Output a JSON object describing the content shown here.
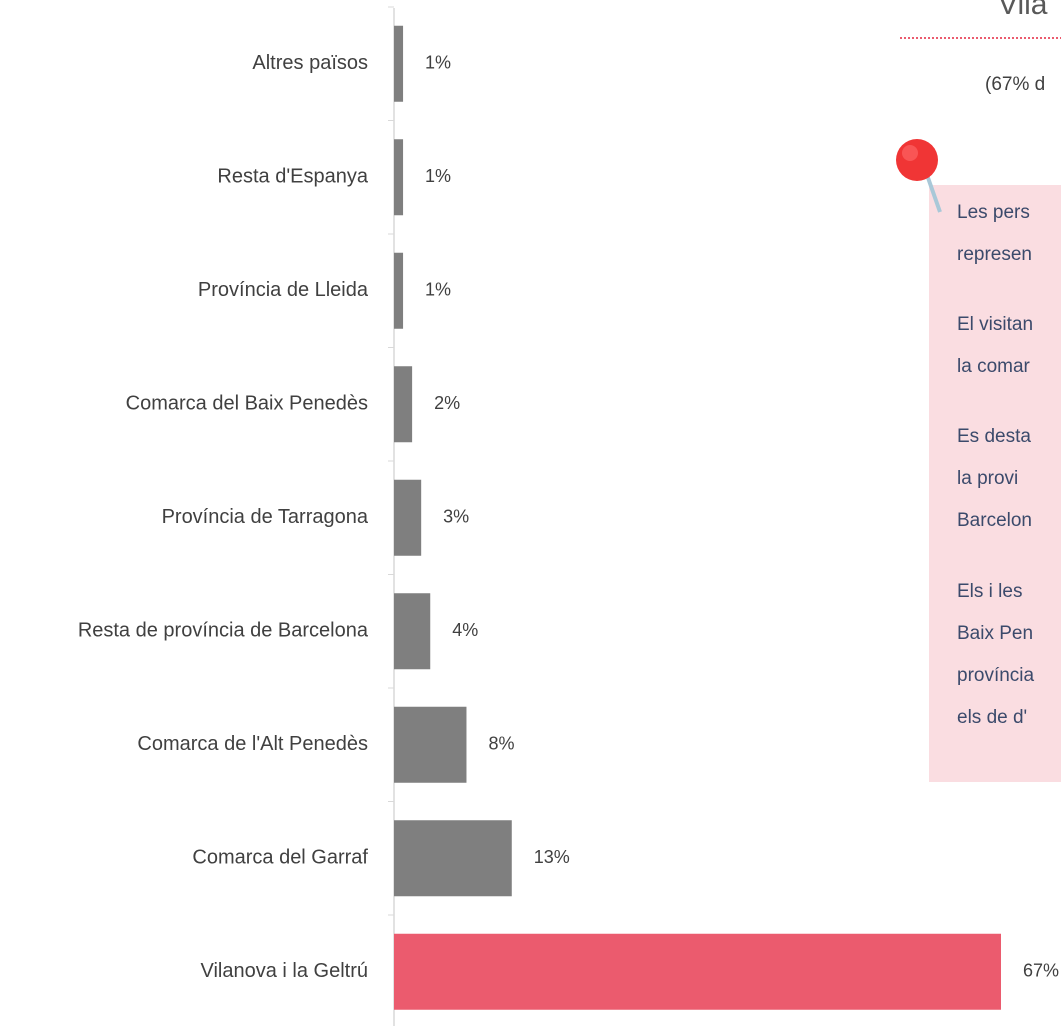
{
  "chart_data": {
    "type": "bar",
    "orientation": "horizontal",
    "title": "Vila",
    "subtitle": "(67% d",
    "categories": [
      "Altres països",
      "Resta d'Espanya",
      "Província de Lleida",
      "Comarca del Baix Penedès",
      "Província de Tarragona",
      "Resta de província de Barcelona",
      "Comarca de l'Alt Penedès",
      "Comarca del Garraf",
      "Vilanova i la Geltrú"
    ],
    "values": [
      1,
      1,
      1,
      2,
      3,
      4,
      8,
      13,
      67
    ],
    "value_labels": [
      "1%",
      "1%",
      "1%",
      "2%",
      "3%",
      "4%",
      "8%",
      "13%",
      "67%"
    ],
    "colors": [
      "#7f7f7f",
      "#7f7f7f",
      "#7f7f7f",
      "#7f7f7f",
      "#7f7f7f",
      "#7f7f7f",
      "#7f7f7f",
      "#7f7f7f",
      "#eb5b6e"
    ],
    "xlim": [
      0,
      67
    ],
    "note": [
      [
        "Les pers",
        "represen"
      ],
      [
        "El visitan",
        "la comar"
      ],
      [
        "Es desta",
        "la provi",
        "Barcelon"
      ],
      [
        "Els i les",
        "Baix Pen",
        "província",
        "els de d'"
      ]
    ]
  }
}
